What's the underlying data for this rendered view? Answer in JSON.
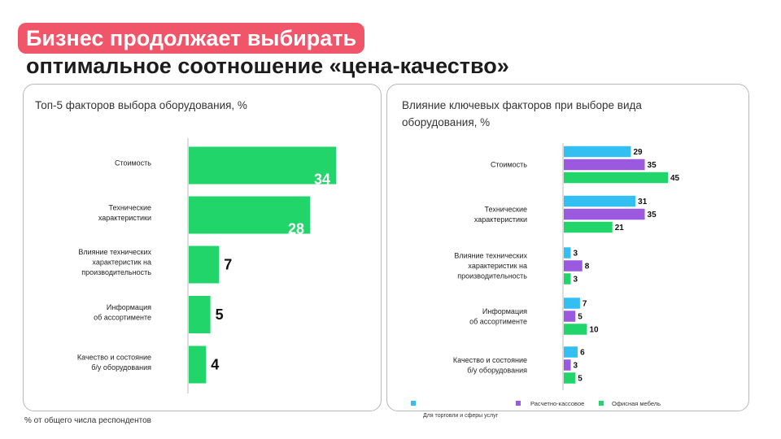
{
  "slide": {
    "title_line1": "Бизнес продолжает выбирать",
    "title_line2": "оптимальное соотношение «цена-качество»",
    "footnote": "% от общего числа респондентов",
    "accent_color": "#f0556a"
  },
  "chart_data": [
    {
      "type": "bar",
      "orientation": "horizontal",
      "title": "Топ-5 факторов выбора оборудования, %",
      "categories": [
        [
          "Стоимость"
        ],
        [
          "Технические",
          "характеристики"
        ],
        [
          "Влияние технических",
          "характеристик  на",
          "производительность"
        ],
        [
          "Информация",
          "об ассортименте"
        ],
        [
          "Качество и состояние",
          "б/у оборудования"
        ]
      ],
      "values": [
        34,
        28,
        7,
        5,
        4
      ],
      "color": "#22d56b",
      "xlim": [
        0,
        34
      ]
    },
    {
      "type": "bar",
      "orientation": "horizontal",
      "title": "Влияние ключевых факторов при выборе вида оборудования, %",
      "categories": [
        [
          "Стоимость"
        ],
        [
          "Технические",
          "характеристики"
        ],
        [
          "Влияние технических",
          "характеристик  на",
          "производительность"
        ],
        [
          "Информация",
          "об ассортименте"
        ],
        [
          "Качество и состояние",
          "б/у оборудования"
        ]
      ],
      "series": [
        {
          "name": "Для торговли и сферы услуг",
          "color": "#33bff2",
          "values": [
            29,
            31,
            3,
            7,
            6
          ]
        },
        {
          "name": "Расчетно-кассовое",
          "color": "#9b59e0",
          "values": [
            35,
            35,
            8,
            5,
            3
          ]
        },
        {
          "name": "Офисная мебель",
          "color": "#22d56b",
          "values": [
            45,
            21,
            3,
            10,
            5
          ]
        }
      ],
      "xlim": [
        0,
        45
      ],
      "legend": "bottom"
    }
  ]
}
